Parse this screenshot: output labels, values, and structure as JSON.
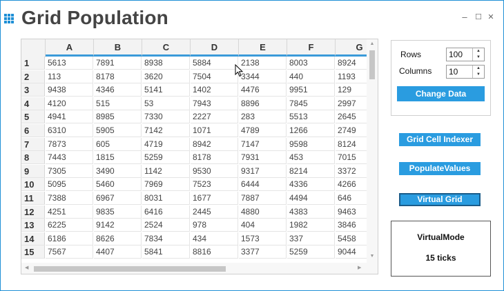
{
  "window": {
    "title": "Grid Population",
    "controls": {
      "minimize": "–",
      "maximize": "☐",
      "close": "✕"
    }
  },
  "grid": {
    "columns": [
      "A",
      "B",
      "C",
      "D",
      "E",
      "F",
      "G"
    ],
    "rows": [
      {
        "header": "1",
        "cells": [
          "5613",
          "7891",
          "8938",
          "5884",
          "2138",
          "8003",
          "8924"
        ]
      },
      {
        "header": "2",
        "cells": [
          "113",
          "8178",
          "3620",
          "7504",
          "3344",
          "440",
          "1193"
        ]
      },
      {
        "header": "3",
        "cells": [
          "9438",
          "4346",
          "5141",
          "1402",
          "4476",
          "9951",
          "129"
        ]
      },
      {
        "header": "4",
        "cells": [
          "4120",
          "515",
          "53",
          "7943",
          "8896",
          "7845",
          "2997"
        ]
      },
      {
        "header": "5",
        "cells": [
          "4941",
          "8985",
          "7330",
          "2227",
          "283",
          "5513",
          "2645"
        ]
      },
      {
        "header": "6",
        "cells": [
          "6310",
          "5905",
          "7142",
          "1071",
          "4789",
          "1266",
          "2749"
        ]
      },
      {
        "header": "7",
        "cells": [
          "7873",
          "605",
          "4719",
          "8942",
          "7147",
          "9598",
          "8124"
        ]
      },
      {
        "header": "8",
        "cells": [
          "7443",
          "1815",
          "5259",
          "8178",
          "7931",
          "453",
          "7015"
        ]
      },
      {
        "header": "9",
        "cells": [
          "7305",
          "3490",
          "1142",
          "9530",
          "9317",
          "8214",
          "3372"
        ]
      },
      {
        "header": "10",
        "cells": [
          "5095",
          "5460",
          "7969",
          "7523",
          "6444",
          "4336",
          "4266"
        ]
      },
      {
        "header": "11",
        "cells": [
          "7388",
          "6967",
          "8031",
          "1677",
          "7887",
          "4494",
          "646"
        ]
      },
      {
        "header": "12",
        "cells": [
          "4251",
          "9835",
          "6416",
          "2445",
          "4880",
          "4383",
          "9463"
        ]
      },
      {
        "header": "13",
        "cells": [
          "6225",
          "9142",
          "2524",
          "978",
          "404",
          "1982",
          "3846"
        ]
      },
      {
        "header": "14",
        "cells": [
          "6186",
          "8626",
          "7834",
          "434",
          "1573",
          "337",
          "5458"
        ]
      },
      {
        "header": "15",
        "cells": [
          "7567",
          "4407",
          "5841",
          "8816",
          "3377",
          "5259",
          "9044"
        ]
      }
    ]
  },
  "settings": {
    "rows_label": "Rows",
    "rows_value": "100",
    "columns_label": "Columns",
    "columns_value": "10",
    "change_data_label": "Change Data"
  },
  "actions": {
    "cell_indexer_label": "Grid Cell Indexer",
    "populate_values_label": "PopulateValues",
    "virtual_grid_label": "Virtual Grid"
  },
  "status": {
    "mode": "VirtualMode",
    "ticks": "15 ticks"
  },
  "colors": {
    "accent": "#2a9ce0",
    "header_underline": "#3a9ad9"
  }
}
